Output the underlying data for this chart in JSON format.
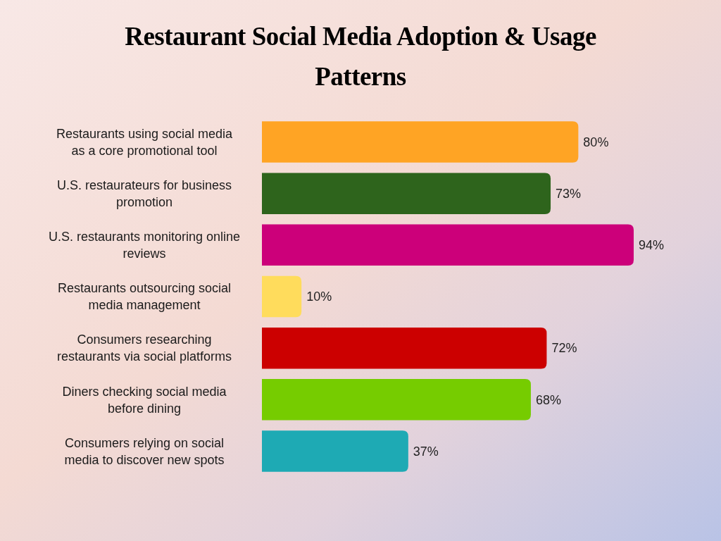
{
  "chart_data": {
    "type": "bar",
    "orientation": "horizontal",
    "title": "Restaurant Social Media Adoption & Usage Patterns",
    "categories": [
      "Restaurants using social media as a core promotional tool",
      "U.S. restaurateurs for business promotion",
      "U.S. restaurants monitoring online reviews",
      "Restaurants outsourcing social media management",
      "Consumers researching restaurants via social platforms",
      "Diners checking social media before dining",
      "Consumers relying on social media to discover new spots"
    ],
    "values": [
      80,
      73,
      94,
      10,
      72,
      68,
      37
    ],
    "colors": [
      "#ffa424",
      "#2e641c",
      "#cc007a",
      "#ffdc5c",
      "#cc0000",
      "#76cc00",
      "#1eaab4"
    ],
    "value_labels": [
      "80%",
      "73%",
      "94%",
      "10%",
      "72%",
      "68%",
      "37%"
    ],
    "tick_labels": "y"
  }
}
